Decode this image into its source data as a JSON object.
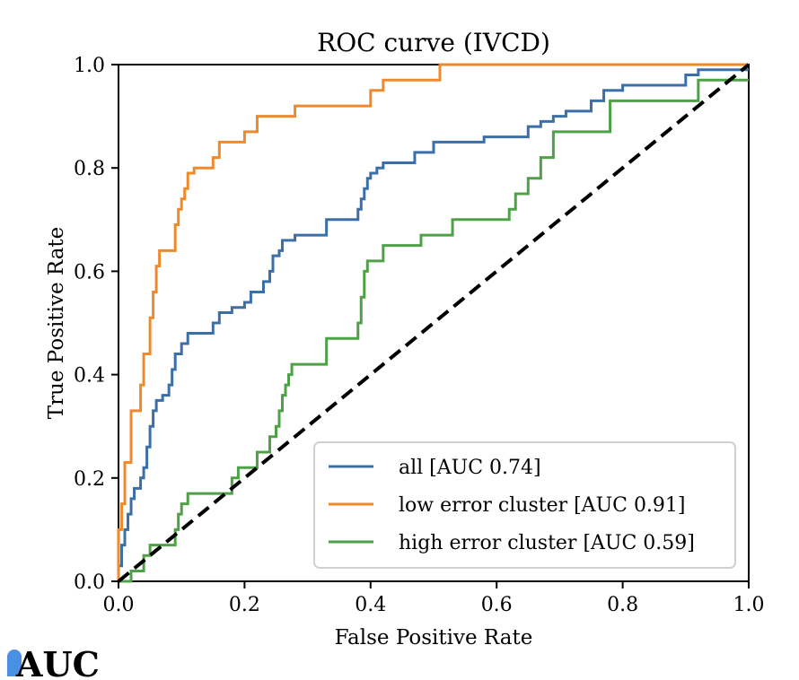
{
  "chart_data": {
    "type": "line",
    "title": "ROC curve (IVCD)",
    "xlabel": "False Positive Rate",
    "ylabel": "True Positive Rate",
    "xlim": [
      0.0,
      1.0
    ],
    "ylim": [
      0.0,
      1.0
    ],
    "x_ticks": [
      "0.0",
      "0.2",
      "0.4",
      "0.6",
      "0.8",
      "1.0"
    ],
    "y_ticks": [
      "0.0",
      "0.2",
      "0.4",
      "0.6",
      "0.8",
      "1.0"
    ],
    "grid": false,
    "legend_position": "bottom-right",
    "series": [
      {
        "name": "all [AUC 0.74]",
        "color": "#3b6fa8",
        "points": [
          [
            0.0,
            0.0
          ],
          [
            0.0,
            0.03
          ],
          [
            0.005,
            0.03
          ],
          [
            0.005,
            0.07
          ],
          [
            0.01,
            0.07
          ],
          [
            0.01,
            0.1
          ],
          [
            0.015,
            0.1
          ],
          [
            0.015,
            0.13
          ],
          [
            0.02,
            0.13
          ],
          [
            0.02,
            0.16
          ],
          [
            0.025,
            0.16
          ],
          [
            0.025,
            0.18
          ],
          [
            0.035,
            0.18
          ],
          [
            0.035,
            0.2
          ],
          [
            0.04,
            0.2
          ],
          [
            0.04,
            0.22
          ],
          [
            0.045,
            0.22
          ],
          [
            0.045,
            0.26
          ],
          [
            0.05,
            0.26
          ],
          [
            0.05,
            0.3
          ],
          [
            0.055,
            0.3
          ],
          [
            0.055,
            0.33
          ],
          [
            0.06,
            0.33
          ],
          [
            0.06,
            0.35
          ],
          [
            0.07,
            0.35
          ],
          [
            0.07,
            0.36
          ],
          [
            0.08,
            0.36
          ],
          [
            0.08,
            0.38
          ],
          [
            0.085,
            0.38
          ],
          [
            0.085,
            0.41
          ],
          [
            0.09,
            0.41
          ],
          [
            0.09,
            0.44
          ],
          [
            0.1,
            0.44
          ],
          [
            0.1,
            0.46
          ],
          [
            0.11,
            0.46
          ],
          [
            0.11,
            0.48
          ],
          [
            0.12,
            0.48
          ],
          [
            0.15,
            0.48
          ],
          [
            0.15,
            0.5
          ],
          [
            0.16,
            0.5
          ],
          [
            0.16,
            0.52
          ],
          [
            0.18,
            0.52
          ],
          [
            0.18,
            0.53
          ],
          [
            0.2,
            0.53
          ],
          [
            0.2,
            0.54
          ],
          [
            0.21,
            0.54
          ],
          [
            0.21,
            0.56
          ],
          [
            0.23,
            0.56
          ],
          [
            0.23,
            0.58
          ],
          [
            0.24,
            0.58
          ],
          [
            0.24,
            0.6
          ],
          [
            0.245,
            0.6
          ],
          [
            0.245,
            0.63
          ],
          [
            0.255,
            0.63
          ],
          [
            0.255,
            0.64
          ],
          [
            0.26,
            0.64
          ],
          [
            0.26,
            0.66
          ],
          [
            0.28,
            0.66
          ],
          [
            0.28,
            0.67
          ],
          [
            0.33,
            0.67
          ],
          [
            0.33,
            0.7
          ],
          [
            0.38,
            0.7
          ],
          [
            0.38,
            0.72
          ],
          [
            0.385,
            0.72
          ],
          [
            0.385,
            0.74
          ],
          [
            0.39,
            0.74
          ],
          [
            0.39,
            0.76
          ],
          [
            0.395,
            0.76
          ],
          [
            0.395,
            0.78
          ],
          [
            0.4,
            0.78
          ],
          [
            0.4,
            0.79
          ],
          [
            0.41,
            0.79
          ],
          [
            0.41,
            0.8
          ],
          [
            0.42,
            0.8
          ],
          [
            0.42,
            0.81
          ],
          [
            0.47,
            0.81
          ],
          [
            0.47,
            0.83
          ],
          [
            0.5,
            0.83
          ],
          [
            0.5,
            0.85
          ],
          [
            0.58,
            0.85
          ],
          [
            0.58,
            0.86
          ],
          [
            0.65,
            0.86
          ],
          [
            0.65,
            0.88
          ],
          [
            0.67,
            0.88
          ],
          [
            0.67,
            0.89
          ],
          [
            0.69,
            0.89
          ],
          [
            0.69,
            0.9
          ],
          [
            0.71,
            0.9
          ],
          [
            0.71,
            0.91
          ],
          [
            0.75,
            0.91
          ],
          [
            0.75,
            0.93
          ],
          [
            0.77,
            0.93
          ],
          [
            0.77,
            0.95
          ],
          [
            0.8,
            0.95
          ],
          [
            0.8,
            0.96
          ],
          [
            0.9,
            0.96
          ],
          [
            0.9,
            0.98
          ],
          [
            0.92,
            0.98
          ],
          [
            0.92,
            0.99
          ],
          [
            1.0,
            0.99
          ]
        ]
      },
      {
        "name": "low error cluster [AUC 0.91]",
        "color": "#ef8a2c",
        "points": [
          [
            0.0,
            0.0
          ],
          [
            0.0,
            0.1
          ],
          [
            0.005,
            0.1
          ],
          [
            0.005,
            0.15
          ],
          [
            0.01,
            0.15
          ],
          [
            0.01,
            0.23
          ],
          [
            0.02,
            0.23
          ],
          [
            0.02,
            0.33
          ],
          [
            0.035,
            0.33
          ],
          [
            0.035,
            0.38
          ],
          [
            0.04,
            0.38
          ],
          [
            0.04,
            0.44
          ],
          [
            0.05,
            0.44
          ],
          [
            0.05,
            0.51
          ],
          [
            0.055,
            0.51
          ],
          [
            0.055,
            0.56
          ],
          [
            0.06,
            0.56
          ],
          [
            0.06,
            0.61
          ],
          [
            0.065,
            0.61
          ],
          [
            0.065,
            0.64
          ],
          [
            0.09,
            0.64
          ],
          [
            0.09,
            0.69
          ],
          [
            0.095,
            0.69
          ],
          [
            0.095,
            0.72
          ],
          [
            0.1,
            0.72
          ],
          [
            0.1,
            0.74
          ],
          [
            0.105,
            0.74
          ],
          [
            0.105,
            0.76
          ],
          [
            0.11,
            0.76
          ],
          [
            0.11,
            0.79
          ],
          [
            0.12,
            0.79
          ],
          [
            0.12,
            0.8
          ],
          [
            0.15,
            0.8
          ],
          [
            0.15,
            0.82
          ],
          [
            0.16,
            0.82
          ],
          [
            0.16,
            0.85
          ],
          [
            0.2,
            0.85
          ],
          [
            0.2,
            0.87
          ],
          [
            0.22,
            0.87
          ],
          [
            0.22,
            0.9
          ],
          [
            0.28,
            0.9
          ],
          [
            0.28,
            0.92
          ],
          [
            0.4,
            0.92
          ],
          [
            0.4,
            0.95
          ],
          [
            0.42,
            0.95
          ],
          [
            0.42,
            0.97
          ],
          [
            0.51,
            0.97
          ],
          [
            0.51,
            1.0
          ],
          [
            1.0,
            1.0
          ]
        ]
      },
      {
        "name": "high error cluster [AUC 0.59]",
        "color": "#4fa147",
        "points": [
          [
            0.0,
            0.0
          ],
          [
            0.02,
            0.0
          ],
          [
            0.02,
            0.02
          ],
          [
            0.04,
            0.02
          ],
          [
            0.04,
            0.05
          ],
          [
            0.05,
            0.05
          ],
          [
            0.05,
            0.07
          ],
          [
            0.09,
            0.07
          ],
          [
            0.09,
            0.1
          ],
          [
            0.095,
            0.1
          ],
          [
            0.095,
            0.13
          ],
          [
            0.1,
            0.13
          ],
          [
            0.1,
            0.15
          ],
          [
            0.11,
            0.15
          ],
          [
            0.11,
            0.17
          ],
          [
            0.18,
            0.17
          ],
          [
            0.18,
            0.2
          ],
          [
            0.19,
            0.2
          ],
          [
            0.19,
            0.22
          ],
          [
            0.22,
            0.22
          ],
          [
            0.22,
            0.25
          ],
          [
            0.24,
            0.25
          ],
          [
            0.24,
            0.28
          ],
          [
            0.25,
            0.28
          ],
          [
            0.25,
            0.3
          ],
          [
            0.255,
            0.3
          ],
          [
            0.255,
            0.33
          ],
          [
            0.26,
            0.33
          ],
          [
            0.26,
            0.36
          ],
          [
            0.265,
            0.36
          ],
          [
            0.265,
            0.38
          ],
          [
            0.27,
            0.38
          ],
          [
            0.27,
            0.4
          ],
          [
            0.275,
            0.4
          ],
          [
            0.275,
            0.42
          ],
          [
            0.33,
            0.42
          ],
          [
            0.33,
            0.47
          ],
          [
            0.38,
            0.47
          ],
          [
            0.38,
            0.5
          ],
          [
            0.385,
            0.5
          ],
          [
            0.385,
            0.55
          ],
          [
            0.39,
            0.55
          ],
          [
            0.39,
            0.6
          ],
          [
            0.395,
            0.6
          ],
          [
            0.395,
            0.62
          ],
          [
            0.42,
            0.62
          ],
          [
            0.42,
            0.65
          ],
          [
            0.48,
            0.65
          ],
          [
            0.48,
            0.67
          ],
          [
            0.53,
            0.67
          ],
          [
            0.53,
            0.7
          ],
          [
            0.62,
            0.7
          ],
          [
            0.62,
            0.72
          ],
          [
            0.63,
            0.72
          ],
          [
            0.63,
            0.75
          ],
          [
            0.65,
            0.75
          ],
          [
            0.65,
            0.78
          ],
          [
            0.67,
            0.78
          ],
          [
            0.67,
            0.82
          ],
          [
            0.69,
            0.82
          ],
          [
            0.69,
            0.87
          ],
          [
            0.78,
            0.87
          ],
          [
            0.78,
            0.93
          ],
          [
            0.92,
            0.93
          ],
          [
            0.92,
            0.97
          ],
          [
            1.0,
            0.97
          ]
        ]
      },
      {
        "name": "",
        "color": "#000000",
        "style": "dashed",
        "points": [
          [
            0.0,
            0.0
          ],
          [
            1.0,
            1.0
          ]
        ]
      }
    ]
  },
  "caption_fragment": "AUC"
}
